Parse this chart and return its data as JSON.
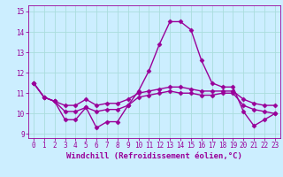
{
  "xlabel": "Windchill (Refroidissement éolien,°C)",
  "x": [
    0,
    1,
    2,
    3,
    4,
    5,
    6,
    7,
    8,
    9,
    10,
    11,
    12,
    13,
    14,
    15,
    16,
    17,
    18,
    19,
    20,
    21,
    22,
    23
  ],
  "y_max": [
    11.5,
    10.8,
    10.6,
    9.7,
    9.7,
    10.3,
    9.3,
    9.6,
    9.6,
    10.4,
    11.1,
    12.1,
    13.4,
    14.5,
    14.5,
    14.1,
    12.6,
    11.5,
    11.3,
    11.3,
    10.1,
    9.4,
    9.7,
    10.0
  ],
  "y_mean": [
    11.5,
    10.8,
    10.6,
    10.4,
    10.4,
    10.7,
    10.4,
    10.5,
    10.5,
    10.7,
    11.0,
    11.1,
    11.2,
    11.3,
    11.3,
    11.2,
    11.1,
    11.1,
    11.1,
    11.1,
    10.7,
    10.5,
    10.4,
    10.4
  ],
  "y_min": [
    11.5,
    10.8,
    10.6,
    10.1,
    10.1,
    10.3,
    10.1,
    10.2,
    10.2,
    10.4,
    10.8,
    10.9,
    11.0,
    11.1,
    11.0,
    11.0,
    10.9,
    10.9,
    11.0,
    11.0,
    10.4,
    10.2,
    10.1,
    10.0
  ],
  "line_color": "#990099",
  "bg_color": "#cceeff",
  "grid_color": "#aadddd",
  "ylim": [
    8.8,
    15.3
  ],
  "yticks": [
    9,
    10,
    11,
    12,
    13,
    14,
    15
  ],
  "xticks": [
    0,
    1,
    2,
    3,
    4,
    5,
    6,
    7,
    8,
    9,
    10,
    11,
    12,
    13,
    14,
    15,
    16,
    17,
    18,
    19,
    20,
    21,
    22,
    23
  ],
  "marker": "D",
  "markersize": 2.5,
  "linewidth": 1.0,
  "tick_fontsize": 5.5,
  "xlabel_fontsize": 6.5
}
